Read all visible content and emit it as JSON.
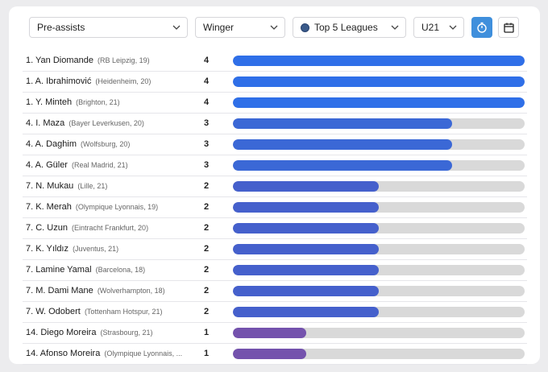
{
  "filters": {
    "stat": "Pre-assists",
    "position": "Winger",
    "competition": "Top 5 Leagues",
    "age": "U21"
  },
  "ranking": {
    "max": 4,
    "rows": [
      {
        "name": "1. Yan Diomande",
        "club": "(RB Leipzig, 19)",
        "value": 4,
        "color": "#2f6fe8"
      },
      {
        "name": "1. A. Ibrahimović",
        "club": "(Heidenheim, 20)",
        "value": 4,
        "color": "#2f6fe8"
      },
      {
        "name": "1. Y. Minteh",
        "club": "(Brighton, 21)",
        "value": 4,
        "color": "#2f6fe8"
      },
      {
        "name": "4. I. Maza",
        "club": "(Bayer Leverkusen, 20)",
        "value": 3,
        "color": "#3b68d6"
      },
      {
        "name": "4. A. Daghim",
        "club": "(Wolfsburg, 20)",
        "value": 3,
        "color": "#3b68d6"
      },
      {
        "name": "4. A. Güler",
        "club": "(Real Madrid, 21)",
        "value": 3,
        "color": "#3b68d6"
      },
      {
        "name": "7. N. Mukau",
        "club": "(Lille, 21)",
        "value": 2,
        "color": "#4560cc"
      },
      {
        "name": "7. K. Merah",
        "club": "(Olympique Lyonnais, 19)",
        "value": 2,
        "color": "#4560cc"
      },
      {
        "name": "7. C. Uzun",
        "club": "(Eintracht Frankfurt, 20)",
        "value": 2,
        "color": "#4560cc"
      },
      {
        "name": "7. K. Yıldız",
        "club": "(Juventus, 21)",
        "value": 2,
        "color": "#4560cc"
      },
      {
        "name": "7. Lamine Yamal",
        "club": "(Barcelona, 18)",
        "value": 2,
        "color": "#4560cc"
      },
      {
        "name": "7. M. Dami Mane",
        "club": "(Wolverhampton, 18)",
        "value": 2,
        "color": "#4560cc"
      },
      {
        "name": "7. W. Odobert",
        "club": "(Tottenham Hotspur, 21)",
        "value": 2,
        "color": "#4560cc"
      },
      {
        "name": "14. Diego Moreira",
        "club": "(Strasbourg, 21)",
        "value": 1,
        "color": "#7452ad"
      },
      {
        "name": "14. Afonso Moreira",
        "club": "(Olympique Lyonnais, ...",
        "value": 1,
        "color": "#7452ad"
      }
    ]
  }
}
